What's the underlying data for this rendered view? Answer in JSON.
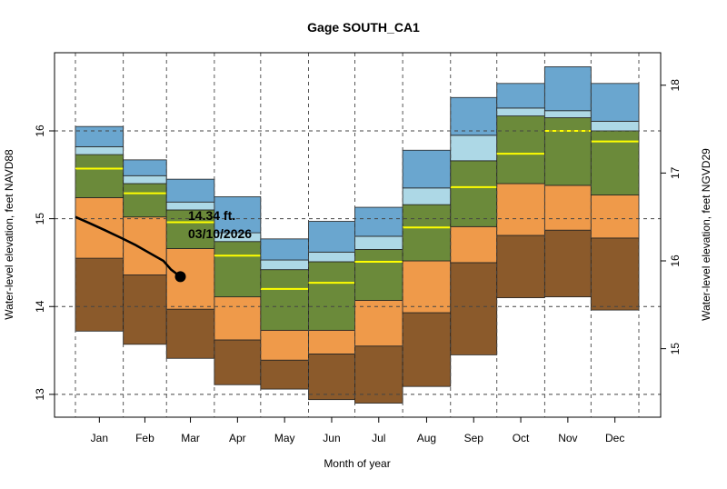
{
  "chart_data": {
    "type": "area",
    "title": "Gage SOUTH_CA1",
    "xlabel": "Month of year",
    "ylabel": "Water-level elevation, feet NAVD88",
    "ylabel_right": "Water-level elevation, feet NGVD29",
    "categories": [
      "Jan",
      "Feb",
      "Mar",
      "Apr",
      "May",
      "Jun",
      "Jul",
      "Aug",
      "Sep",
      "Oct",
      "Nov",
      "Dec"
    ],
    "month_days": [
      31,
      28,
      31,
      30,
      31,
      30,
      31,
      31,
      30,
      31,
      30,
      31
    ],
    "ylim": [
      12.74,
      16.89
    ],
    "yticks": [
      13,
      14,
      15,
      16
    ],
    "yticks_right": [
      15,
      16,
      17,
      18
    ],
    "right_axis_offset": 1.48,
    "grid": true,
    "band_colors": {
      "min_p10": "#8b5a2b",
      "p10_p25": "#ef9a4a",
      "p25_p75": "#6b8a3a",
      "p75_p90": "#add8e6",
      "p90_max": "#6aa6cf",
      "median": "#ffff00"
    },
    "stats": {
      "min": [
        13.72,
        13.57,
        13.41,
        13.11,
        13.06,
        12.94,
        12.9,
        13.09,
        13.45,
        14.1,
        14.11,
        13.96
      ],
      "p10": [
        14.55,
        14.36,
        13.97,
        13.62,
        13.39,
        13.46,
        13.55,
        13.93,
        14.5,
        14.81,
        14.87,
        14.78
      ],
      "p25": [
        15.24,
        15.02,
        14.66,
        14.11,
        13.73,
        13.73,
        14.07,
        14.52,
        14.91,
        15.4,
        15.38,
        15.27
      ],
      "median": [
        15.57,
        15.29,
        14.96,
        14.58,
        14.2,
        14.27,
        14.51,
        14.9,
        15.36,
        15.74,
        16.0,
        15.88
      ],
      "p75": [
        15.73,
        15.4,
        15.1,
        14.74,
        14.42,
        14.51,
        14.65,
        15.16,
        15.66,
        16.17,
        16.15,
        16.0
      ],
      "p90": [
        15.82,
        15.49,
        15.19,
        14.84,
        14.53,
        14.62,
        14.8,
        15.35,
        15.95,
        16.26,
        16.23,
        16.11
      ],
      "max": [
        16.05,
        15.67,
        15.45,
        15.25,
        14.77,
        14.97,
        15.13,
        15.78,
        16.38,
        16.54,
        16.73,
        16.54
      ]
    },
    "current_series": {
      "day_of_year": [
        1,
        10,
        20,
        32,
        40,
        50,
        58,
        63,
        69
      ],
      "values": [
        15.02,
        14.95,
        14.87,
        14.77,
        14.7,
        14.6,
        14.52,
        14.42,
        14.34
      ]
    },
    "annotation": {
      "value_label": "14.34 ft.",
      "date_label": "03/10/2026"
    }
  }
}
